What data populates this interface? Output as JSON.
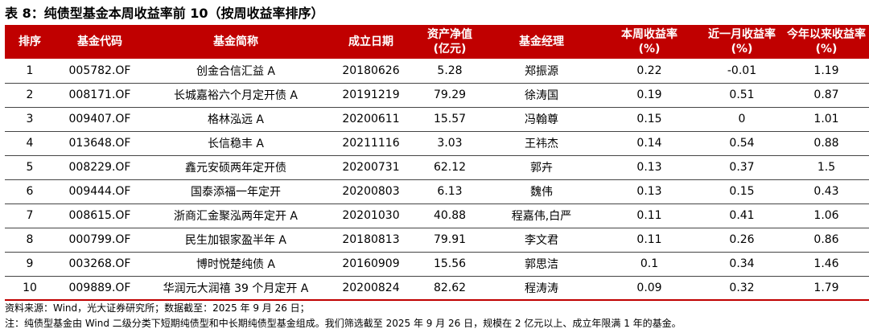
{
  "title": "表 8：纯债型基金本周收益率前 10（按周收益率排序）",
  "headers": [
    "排序",
    "基金代码",
    "基金简称",
    "成立日期",
    "资产净值\n(亿元)",
    "基金经理",
    "本周收益率\n(%)",
    "近一月收益率\n(%)",
    "今年以来收益率\n(%)"
  ],
  "rows": [
    [
      "1",
      "005782.OF",
      "创金合信汇益 A",
      "20180626",
      "5.28",
      "郑振源",
      "0.22",
      "-0.01",
      "1.19"
    ],
    [
      "2",
      "008171.OF",
      "长城嘉裕六个月定开债 A",
      "20191219",
      "79.29",
      "徐涛国",
      "0.19",
      "0.51",
      "0.87"
    ],
    [
      "3",
      "009407.OF",
      "格林泓远 A",
      "20200611",
      "15.57",
      "冯翰尊",
      "0.15",
      "0",
      "1.01"
    ],
    [
      "4",
      "013648.OF",
      "长信稳丰 A",
      "20211116",
      "3.03",
      "王祎杰",
      "0.14",
      "0.54",
      "0.88"
    ],
    [
      "5",
      "008229.OF",
      "鑫元安硕两年定开债",
      "20200731",
      "62.12",
      "郭卉",
      "0.13",
      "0.37",
      "1.5"
    ],
    [
      "6",
      "009444.OF",
      "国泰添福一年定开",
      "20200803",
      "6.13",
      "魏伟",
      "0.13",
      "0.15",
      "0.43"
    ],
    [
      "7",
      "008615.OF",
      "浙商汇金聚泓两年定开 A",
      "20201030",
      "40.88",
      "程嘉伟,白严",
      "0.11",
      "0.41",
      "1.06"
    ],
    [
      "8",
      "000799.OF",
      "民生加银家盈半年 A",
      "20180813",
      "79.91",
      "李文君",
      "0.11",
      "0.26",
      "0.86"
    ],
    [
      "9",
      "003268.OF",
      "博时悦楚纯债 A",
      "20160909",
      "15.56",
      "郭思洁",
      "0.1",
      "0.34",
      "1.46"
    ],
    [
      "10",
      "009889.OF",
      "华润元大润禧 39 个月定开 A",
      "20200824",
      "82.62",
      "程涛涛",
      "0.09",
      "0.32",
      "1.79"
    ]
  ],
  "source_note": "资料来源：Wind，光大证券研究所；数据截至：2025 年 9 月 26 日；",
  "footnote": "注：纯债型基金由 Wind 二级分类下短期纯债型和中长期纯债型基金组成。我们筛选截至 2025 年 9 月 26 日，规模在 2 亿元以上、成立年限满 1 年的基金。",
  "colors": {
    "header_bg": "#c00000",
    "header_text": "#ffffff",
    "row_border": "#444444"
  }
}
